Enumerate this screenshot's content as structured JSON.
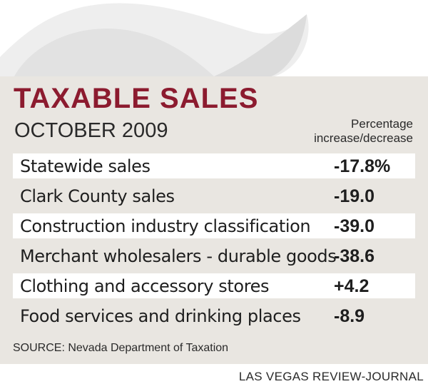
{
  "title": "TAXABLE SALES",
  "subtitle": "OCTOBER 2009",
  "column_header": {
    "line1": "Percentage",
    "line2": "increase/decrease"
  },
  "chart_data": {
    "type": "table",
    "title": "TAXABLE SALES",
    "subtitle": "OCTOBER 2009",
    "columns": [
      "",
      "Percentage increase/decrease"
    ],
    "rows": [
      {
        "label": "Statewide sales",
        "value": -17.8,
        "display": "-17.8%"
      },
      {
        "label": "Clark County sales",
        "value": -19.0,
        "display": "-19.0"
      },
      {
        "label": "Construction industry classification",
        "value": -39.0,
        "display": "-39.0"
      },
      {
        "label": "Merchant wholesalers - durable goods",
        "value": -38.6,
        "display": "-38.6"
      },
      {
        "label": "Clothing and accessory stores",
        "value": 4.2,
        "display": "+4.2"
      },
      {
        "label": "Food services and drinking places",
        "value": -8.9,
        "display": "-8.9"
      }
    ]
  },
  "source": "SOURCE: Nevada Department of Taxation",
  "credit": "LAS VEGAS REVIEW-JOURNAL",
  "colors": {
    "title": "#8c1b2f",
    "panel": "#e9e6e1",
    "row_highlight": "#ffffff"
  }
}
